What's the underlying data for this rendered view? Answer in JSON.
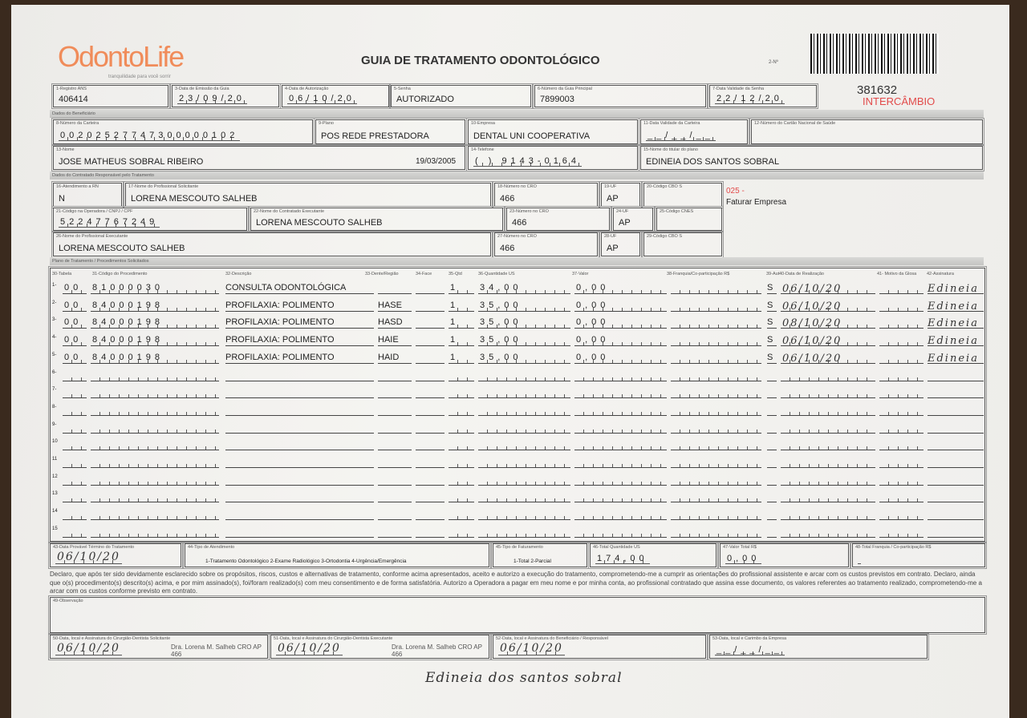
{
  "header": {
    "logo": "OdontoLife",
    "logo_tagline": "tranquilidade para você sorrir",
    "title": "GUIA DE TRATAMENTO ODONTOLÓGICO",
    "guide_no_label": "2-Nº",
    "guide_no": "381632",
    "exchange": "INTERCÂMBIO"
  },
  "row1": {
    "f1": {
      "label": "1-Registro ANS",
      "value": "406414"
    },
    "f3": {
      "label": "3-Data de Emissão da Guia",
      "value": "23/09/20"
    },
    "f4": {
      "label": "4-Data de Autorização",
      "value": "06/10/20"
    },
    "f5": {
      "label": "5-Senha",
      "value": "AUTORIZADO"
    },
    "f6": {
      "label": "6-Número da Guia Principal",
      "value": "7899003"
    },
    "f7": {
      "label": "7-Data Validade da Senha",
      "value": "22/12/20"
    }
  },
  "sections": {
    "beneficiary": "Dados do Beneficiário",
    "contractor": "Dados do Contratado Responsável pelo Tratamento",
    "plan": "Plano de Tratamento / Procedimentos Solicitados"
  },
  "beneficiary": {
    "f8": {
      "label": "8-Número da Carteira",
      "value": "00202527747300000102"
    },
    "f9": {
      "label": "9-Plano",
      "value": "POS REDE PRESTADORA"
    },
    "f10": {
      "label": "10-Empresa",
      "value": "DENTAL UNI  COOPERATIVA"
    },
    "f11": {
      "label": "11-Data Validade da Carteira",
      "value": "__/__/__"
    },
    "f12": {
      "label": "12-Número do Cartão Nacional de Saúde",
      "value": ""
    },
    "f13": {
      "label": "13-Nome",
      "value": "JOSE MATHEUS SOBRAL RIBEIRO",
      "birth": "19/03/2005"
    },
    "f14": {
      "label": "14-Telefone",
      "value": "(  ) 9143-0164"
    },
    "f15": {
      "label": "15-Nome do titular do plano",
      "value": "EDINEIA DOS SANTOS SOBRAL"
    }
  },
  "contractor": {
    "f16": {
      "label": "16-Atendimento a RN",
      "value": "N"
    },
    "f17": {
      "label": "17-Nome do Profissional Solicitante",
      "value": "LORENA MESCOUTO SALHEB"
    },
    "f18": {
      "label": "18-Número no CRO",
      "value": "466"
    },
    "f19": {
      "label": "19-UF",
      "value": "AP"
    },
    "f20": {
      "label": "20-Código CBO S",
      "value": ""
    },
    "f21": {
      "label": "21-Código na Operadora / CNPJ / CPF",
      "value": "52247767249"
    },
    "f22": {
      "label": "22-Nome do Contratado Executante",
      "value": "LORENA MESCOUTO SALHEB"
    },
    "f23": {
      "label": "23-Número no CRO",
      "value": "466"
    },
    "f24": {
      "label": "24-UF",
      "value": "AP"
    },
    "f25": {
      "label": "25-Código CNES",
      "value": ""
    },
    "f26": {
      "label": "26-Nome do Profissional Executante",
      "value": "LORENA MESCOUTO SALHEB"
    },
    "f27": {
      "label": "27-Número no CRO",
      "value": "466"
    },
    "f28": {
      "label": "28-UF",
      "value": "AP"
    },
    "f29": {
      "label": "29-Código CBO S",
      "value": ""
    },
    "billing_code": "025 -",
    "billing_note": "Faturar Empresa"
  },
  "table": {
    "headers": [
      "30-Tabela",
      "31-Código do Procedimento",
      "32-Descrição",
      "33-Dente/Região",
      "34-Face",
      "35-Qtd",
      "36-Quantidade US",
      "37-Valor",
      "38-Franquia/Co-participação R$",
      "39-Aut",
      "40-Data de Realização",
      "41- Motivo da Glosa",
      "42-Assinatura"
    ],
    "rows": [
      {
        "n": "1-",
        "tabela": "00",
        "codigo": "81000030",
        "descricao": "CONSULTA ODONTOLÓGICA",
        "dente": "",
        "face": "",
        "qtd": "1",
        "us": "34,00",
        "valor": "0,00",
        "franquia": "",
        "aut": "S",
        "data": "06/10/20",
        "glosa": "",
        "assinatura": "Edineia"
      },
      {
        "n": "2-",
        "tabela": "00",
        "codigo": "84000198",
        "descricao": "PROFILAXIA: POLIMENTO",
        "dente": "HASE",
        "face": "",
        "qtd": "1",
        "us": "35,00",
        "valor": "0,00",
        "franquia": "",
        "aut": "S",
        "data": "06/10/20",
        "glosa": "",
        "assinatura": "Edineia"
      },
      {
        "n": "3-",
        "tabela": "00",
        "codigo": "84000198",
        "descricao": "PROFILAXIA: POLIMENTO",
        "dente": "HASD",
        "face": "",
        "qtd": "1",
        "us": "35,00",
        "valor": "0,00",
        "franquia": "",
        "aut": "S",
        "data": "08/10/20",
        "glosa": "",
        "assinatura": "Edineia"
      },
      {
        "n": "4-",
        "tabela": "00",
        "codigo": "84000198",
        "descricao": "PROFILAXIA: POLIMENTO",
        "dente": "HAIE",
        "face": "",
        "qtd": "1",
        "us": "35,00",
        "valor": "0,00",
        "franquia": "",
        "aut": "S",
        "data": "06/10/20",
        "glosa": "",
        "assinatura": "Edineia"
      },
      {
        "n": "5-",
        "tabela": "00",
        "codigo": "84000198",
        "descricao": "PROFILAXIA: POLIMENTO",
        "dente": "HAID",
        "face": "",
        "qtd": "1",
        "us": "35,00",
        "valor": "0,00",
        "franquia": "",
        "aut": "S",
        "data": "06/10/20",
        "glosa": "",
        "assinatura": "Edineia"
      },
      {
        "n": "6-"
      },
      {
        "n": "7-"
      },
      {
        "n": "8-"
      },
      {
        "n": "9-"
      },
      {
        "n": "10"
      },
      {
        "n": "11"
      },
      {
        "n": "12"
      },
      {
        "n": "13"
      },
      {
        "n": "14"
      },
      {
        "n": "15"
      }
    ]
  },
  "footer": {
    "f43": {
      "label": "43-Data Provável Término do Tratamento",
      "value": "06/10/20"
    },
    "f44": {
      "label": "44-Tipo de Atendimento",
      "value": "1-Tratamento Odontológico  2-Exame Radiológico  3-Ortodontia  4-Urgência/Emergência"
    },
    "f45": {
      "label": "45-Tipo de Faturamento",
      "value": "1-Total  2-Parcial"
    },
    "f46": {
      "label": "46-Total Quantidade US",
      "value": "174,00"
    },
    "f47": {
      "label": "47-Valor Total R$",
      "value": "0,00"
    },
    "f48": {
      "label": "48-Total Franquia / Co-participação R$",
      "value": ""
    },
    "declaration": "Declaro, que após ter sido devidamente esclarecido sobre os propósitos, riscos, custos e alternativas de tratamento, conforme acima apresentados, aceito e autorizo a execução do tratamento, comprometendo-me a cumprir as orientações do profissional assistente e arcar com os custos previstos em contrato. Declaro, ainda que o(s) procedimento(s) descrito(s) acima, e por mim assinado(s), foi/foram realizado(s) com meu consentimento e de forma satisfatória. Autorizo a Operadora a pagar em meu nome e por minha conta, ao profissional contratado que assina esse documento, os valores referentes ao tratamento realizado, comprometendo-me a arcar com os custos conforme previsto em contrato.",
    "f49": {
      "label": "49-Observação",
      "value": ""
    },
    "f50": {
      "label": "50-Data, local e Assinatura do Cirurgião-Dentista Solicitante",
      "value": "06/10/20",
      "stamp": "Dra. Lorena M. Salheb CRO AP 466"
    },
    "f51": {
      "label": "51-Data, local e Assinatura do Cirurgião-Dentista Executante",
      "value": "06/10/20",
      "stamp": "Dra. Lorena M. Salheb CRO AP 466"
    },
    "f52": {
      "label": "52-Data, local e Assinatura do Beneficiário / Responsável",
      "value": "06/10/20"
    },
    "f53": {
      "label": "53-Data, local e Carimbo da Empresa",
      "value": "__/__/__"
    },
    "beneficiary_signature": "Edineia dos santos sobral"
  }
}
